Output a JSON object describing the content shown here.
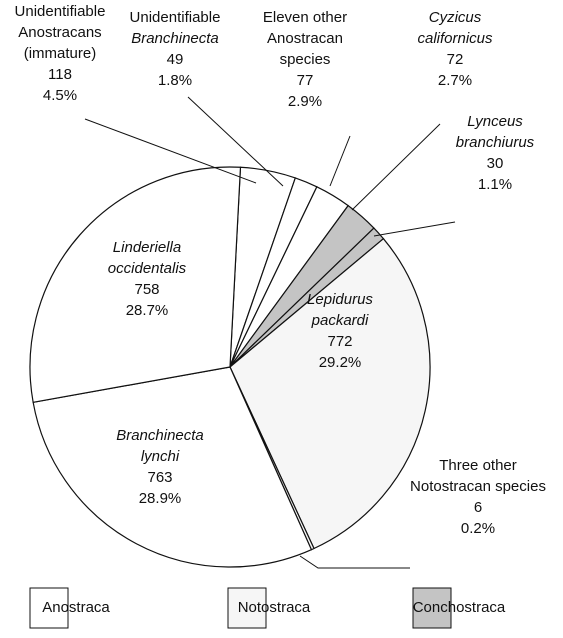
{
  "chart_data": {
    "type": "pie",
    "categories": [
      [
        "Unidentifiable",
        "Anostracans",
        "(immature)"
      ],
      [
        "Unidentifiable",
        "Branchinecta"
      ],
      [
        "Eleven other",
        "Anostracan",
        "species"
      ],
      [
        "Cyzicus",
        "californicus"
      ],
      [
        "Lynceus",
        "branchiurus"
      ],
      [
        "Lepidurus",
        "packardi"
      ],
      [
        "Three other",
        "Notostracan species"
      ],
      [
        "Branchinecta",
        "lynchi"
      ],
      [
        "Linderiella",
        "occidentalis"
      ]
    ],
    "italic_lines": [
      [],
      [
        1
      ],
      [],
      [
        0,
        1
      ],
      [
        0,
        1
      ],
      [
        0,
        1
      ],
      [],
      [
        0,
        1
      ],
      [
        0,
        1
      ]
    ],
    "values": [
      118,
      49,
      77,
      72,
      30,
      772,
      6,
      763,
      758
    ],
    "percents": [
      4.5,
      1.8,
      2.9,
      2.7,
      1.1,
      29.2,
      0.2,
      28.9,
      28.7
    ],
    "percent_labels": [
      "4.5%",
      "1.8%",
      "2.9%",
      "2.7%",
      "1.1%",
      "29.2%",
      "0.2%",
      "28.9%",
      "28.7%"
    ],
    "slice_groups": [
      0,
      0,
      0,
      2,
      2,
      1,
      1,
      0,
      0
    ],
    "groups": [
      {
        "name": "Anostraca",
        "color": "#ffffff"
      },
      {
        "name": "Notostraca",
        "color": "#f6f6f6"
      },
      {
        "name": "Conchostraca",
        "color": "#c4c4c4"
      }
    ]
  }
}
